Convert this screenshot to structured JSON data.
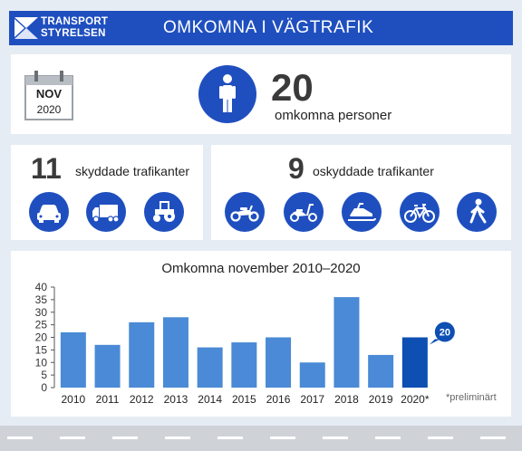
{
  "header": {
    "logo_line1": "TRANSPORT",
    "logo_line2": "STYRELSEN",
    "title": "OMKOMNA I VÄGTRAFIK"
  },
  "calendar": {
    "month": "NOV",
    "year": "2020"
  },
  "total": {
    "value": "20",
    "label": "omkomna personer"
  },
  "protected": {
    "value": "11",
    "label": "skyddade trafikanter",
    "icons": [
      "car-icon",
      "truck-icon",
      "tractor-icon"
    ]
  },
  "unprotected": {
    "value": "9",
    "label": "oskyddade trafikanter",
    "icons": [
      "motorcycle-icon",
      "moped-icon",
      "snowmobile-icon",
      "bicycle-icon",
      "pedestrian-icon"
    ]
  },
  "colors": {
    "brand": "#1f4fbf",
    "bar": "#4a8ad6",
    "bar_highlight": "#0d4fb3",
    "background": "#e6ecf4"
  },
  "chart_data": {
    "type": "bar",
    "title": "Omkomna november 2010–2020",
    "categories": [
      "2010",
      "2011",
      "2012",
      "2013",
      "2014",
      "2015",
      "2016",
      "2017",
      "2018",
      "2019",
      "2020*"
    ],
    "values": [
      22,
      17,
      26,
      28,
      16,
      18,
      20,
      10,
      36,
      13,
      20
    ],
    "ylim": [
      0,
      40
    ],
    "yticks": [
      "0",
      "5",
      "10",
      "15",
      "20",
      "25",
      "30",
      "35",
      "40"
    ],
    "callout": "20",
    "footnote": "*preliminärt",
    "grid": false
  }
}
